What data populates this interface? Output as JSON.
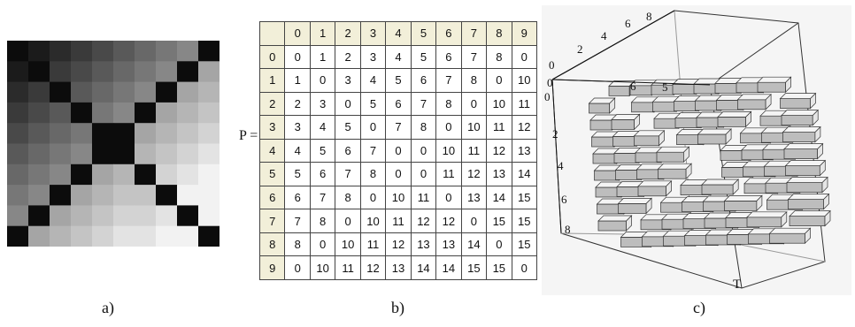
{
  "panel_a": {
    "caption": "a)",
    "grid": [
      [
        0,
        1,
        2,
        3,
        4,
        5,
        6,
        7,
        8,
        0
      ],
      [
        1,
        0,
        3,
        4,
        5,
        6,
        7,
        8,
        0,
        10
      ],
      [
        2,
        3,
        0,
        5,
        6,
        7,
        8,
        0,
        10,
        11
      ],
      [
        3,
        4,
        5,
        0,
        7,
        8,
        0,
        10,
        11,
        12
      ],
      [
        4,
        5,
        6,
        7,
        0,
        0,
        10,
        11,
        12,
        13
      ],
      [
        5,
        6,
        7,
        8,
        0,
        0,
        11,
        12,
        13,
        14
      ],
      [
        6,
        7,
        8,
        0,
        10,
        11,
        0,
        13,
        14,
        15
      ],
      [
        7,
        8,
        0,
        10,
        11,
        12,
        12,
        0,
        15,
        15
      ],
      [
        8,
        0,
        10,
        11,
        12,
        13,
        13,
        14,
        0,
        15
      ],
      [
        0,
        10,
        11,
        12,
        13,
        14,
        14,
        15,
        15,
        0
      ]
    ]
  },
  "panel_b": {
    "caption": "b)",
    "prefix": "P =",
    "headers": [
      "0",
      "1",
      "2",
      "3",
      "4",
      "5",
      "6",
      "7",
      "8",
      "9"
    ],
    "rows": [
      [
        "0",
        "1",
        "2",
        "3",
        "4",
        "5",
        "6",
        "7",
        "8",
        "0"
      ],
      [
        "1",
        "0",
        "3",
        "4",
        "5",
        "6",
        "7",
        "8",
        "0",
        "10"
      ],
      [
        "2",
        "3",
        "0",
        "5",
        "6",
        "7",
        "8",
        "0",
        "10",
        "11"
      ],
      [
        "3",
        "4",
        "5",
        "0",
        "7",
        "8",
        "0",
        "10",
        "11",
        "12"
      ],
      [
        "4",
        "5",
        "6",
        "7",
        "0",
        "0",
        "10",
        "11",
        "12",
        "13"
      ],
      [
        "5",
        "6",
        "7",
        "8",
        "0",
        "0",
        "11",
        "12",
        "13",
        "14"
      ],
      [
        "6",
        "7",
        "8",
        "0",
        "10",
        "11",
        "0",
        "13",
        "14",
        "15"
      ],
      [
        "7",
        "8",
        "0",
        "10",
        "11",
        "12",
        "12",
        "0",
        "15",
        "15"
      ],
      [
        "8",
        "0",
        "10",
        "11",
        "12",
        "13",
        "13",
        "14",
        "0",
        "15"
      ],
      [
        "0",
        "10",
        "11",
        "12",
        "13",
        "14",
        "14",
        "15",
        "15",
        "0"
      ]
    ]
  },
  "panel_c": {
    "caption": "c)",
    "top_axis_ticks": [
      "0",
      "2",
      "4",
      "6",
      "8"
    ],
    "left_axis_ticks": [
      "0",
      "2",
      "4",
      "6",
      "8"
    ],
    "small_ticks": [
      "0",
      "6",
      "5"
    ],
    "axis_letter": "T"
  }
}
